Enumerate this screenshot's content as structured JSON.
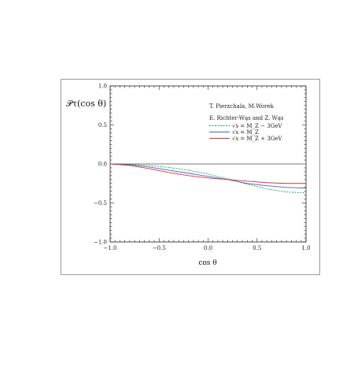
{
  "chart_data": {
    "type": "line",
    "ylabel": "𝒫τ(cos θ)",
    "xlabel": "cos θ",
    "xlim": [
      -1.0,
      1.0
    ],
    "ylim": [
      -1.0,
      1.0
    ],
    "xticks": [
      -1.0,
      -0.5,
      0.0,
      0.5,
      1.0
    ],
    "xtick_labels": [
      "−1.0",
      "−0.5",
      "0.0",
      "0.5",
      "1.0"
    ],
    "yticks": [
      -1.0,
      -0.5,
      0.0,
      0.5,
      1.0
    ],
    "ytick_labels": [
      "−1.0",
      "−0.5",
      "0.0",
      "0.5",
      "1.0"
    ],
    "annotations": [
      "T. Pierzchala, M.Worek",
      "E. Richter-Wąs and Z. Wąs"
    ],
    "reference_line": {
      "y": 0.0,
      "color": "#7a7a7a"
    },
    "x": [
      -1.0,
      -0.8,
      -0.6,
      -0.4,
      -0.2,
      0.0,
      0.2,
      0.4,
      0.6,
      0.8,
      1.0
    ],
    "series": [
      {
        "name": "√s = M_Z − 3GeV",
        "color": "#1f9a5a",
        "dashed": true,
        "values": [
          0.0,
          -0.005,
          -0.02,
          -0.045,
          -0.08,
          -0.13,
          -0.19,
          -0.26,
          -0.32,
          -0.36,
          -0.37
        ]
      },
      {
        "name": "√s = M_Z",
        "color": "#4a64c8",
        "dashed": false,
        "values": [
          0.0,
          -0.01,
          -0.04,
          -0.08,
          -0.12,
          -0.16,
          -0.2,
          -0.25,
          -0.28,
          -0.3,
          -0.31
        ]
      },
      {
        "name": "√s = M_Z + 3GeV",
        "color": "#d9323a",
        "dashed": false,
        "values": [
          0.0,
          -0.02,
          -0.06,
          -0.11,
          -0.15,
          -0.18,
          -0.2,
          -0.22,
          -0.24,
          -0.25,
          -0.25
        ]
      }
    ],
    "legend_placement": "upper-right",
    "grid": false
  }
}
